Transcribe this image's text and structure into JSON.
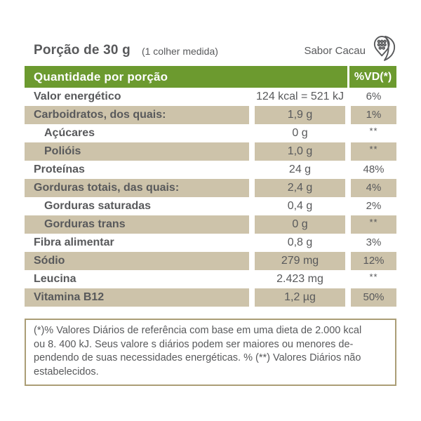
{
  "header": {
    "portion_label": "Porção de 30 g",
    "portion_note": "(1 colher medida)",
    "flavor": "Sabor Cacau",
    "flavor_icon": "cacao-pod-icon"
  },
  "table": {
    "header": {
      "quantity_label": "Quantidade por porção",
      "vd_label": "%VD(*)"
    },
    "rows": [
      {
        "label": "Valor energético",
        "value": "124 kcal = 521 kJ",
        "vd": "6%",
        "indent": false,
        "shaded": false
      },
      {
        "label": "Carboidratos, dos quais:",
        "value": "1,9 g",
        "vd": "1%",
        "indent": false,
        "shaded": true
      },
      {
        "label": "Açúcares",
        "value": "0 g",
        "vd": "**",
        "indent": true,
        "shaded": false
      },
      {
        "label": "Polióis",
        "value": "1,0 g",
        "vd": "**",
        "indent": true,
        "shaded": true
      },
      {
        "label": "Proteínas",
        "value": "24 g",
        "vd": "48%",
        "indent": false,
        "shaded": false
      },
      {
        "label": "Gorduras totais, das quais:",
        "value": "2,4 g",
        "vd": "4%",
        "indent": false,
        "shaded": true
      },
      {
        "label": "Gorduras saturadas",
        "value": "0,4 g",
        "vd": "2%",
        "indent": true,
        "shaded": false
      },
      {
        "label": "Gorduras trans",
        "value": "0 g",
        "vd": "**",
        "indent": true,
        "shaded": true
      },
      {
        "label": "Fibra alimentar",
        "value": "0,8 g",
        "vd": "3%",
        "indent": false,
        "shaded": false
      },
      {
        "label": "Sódio",
        "value": "279 mg",
        "vd": "12%",
        "indent": false,
        "shaded": true
      },
      {
        "label": "Leucina",
        "value": "2.423 mg",
        "vd": "**",
        "indent": false,
        "shaded": false
      },
      {
        "label": "Vitamina B12",
        "value": "1,2 µg",
        "vd": "50%",
        "indent": false,
        "shaded": true
      }
    ]
  },
  "footnote": {
    "lines": [
      "(*)% Valores Diários de referência com base em uma dieta de 2.000 kcal",
      "ou 8. 400 kJ. Seus valore s diários podem ser maiores ou menores de-",
      "pendendo de suas necessidades energéticas. % (**) Valores Diários não",
      "estabelecidos."
    ]
  },
  "colors": {
    "header_green": "#6c9a2f",
    "row_beige": "#cdc3aa",
    "text_gray": "#58595b",
    "footnote_border": "#ab9e76",
    "header_text": "#ffffff"
  }
}
